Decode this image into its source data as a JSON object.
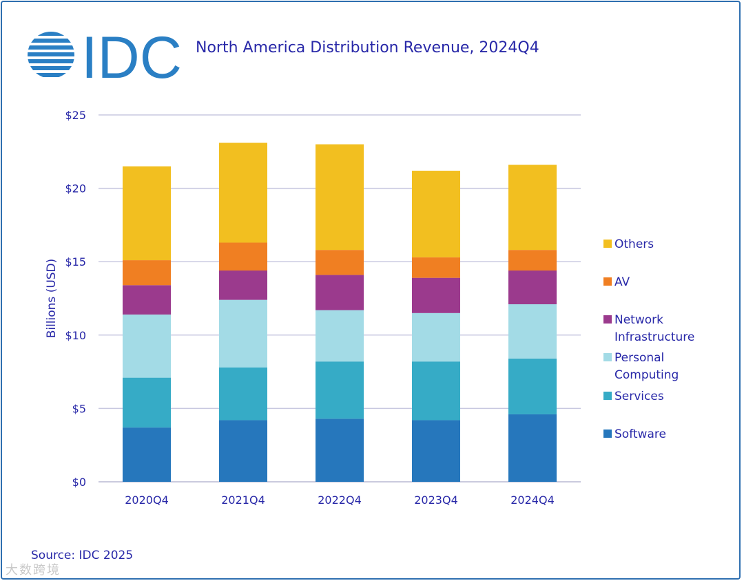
{
  "header": {
    "logo_text": "IDC",
    "title": "North America Distribution Revenue, 2024Q4"
  },
  "footer": {
    "source": "Source: IDC 2025",
    "watermark": "大数跨境"
  },
  "colors": {
    "frame": "#2f6fb0",
    "brand": "#2a7fc4",
    "text": "#2828a8",
    "grid": "#c8c8e0"
  },
  "chart_data": {
    "type": "bar",
    "stacked": true,
    "categories": [
      "2020Q4",
      "2021Q4",
      "2022Q4",
      "2023Q4",
      "2024Q4"
    ],
    "series": [
      {
        "name": "Software",
        "color": "#2677bc",
        "values": [
          3.7,
          4.2,
          4.3,
          4.2,
          4.6
        ]
      },
      {
        "name": "Services",
        "color": "#36abc6",
        "values": [
          3.4,
          3.6,
          3.9,
          4.0,
          3.8
        ]
      },
      {
        "name": "Personal Computing",
        "color": "#a3dbe6",
        "values": [
          4.3,
          4.6,
          3.5,
          3.3,
          3.7
        ]
      },
      {
        "name": "Network Infrastructure",
        "color": "#9b3a8d",
        "values": [
          2.0,
          2.0,
          2.4,
          2.4,
          2.3
        ]
      },
      {
        "name": "AV",
        "color": "#f07f22",
        "values": [
          1.7,
          1.9,
          1.7,
          1.4,
          1.4
        ]
      },
      {
        "name": "Others",
        "color": "#f2bf20",
        "values": [
          6.4,
          6.8,
          7.2,
          5.9,
          5.8
        ]
      }
    ],
    "legend_order": [
      {
        "label_lines": [
          "Others"
        ],
        "series": "Others"
      },
      {
        "label_lines": [
          "AV"
        ],
        "series": "AV"
      },
      {
        "label_lines": [
          "Network",
          "Infrastructure"
        ],
        "series": "Network Infrastructure"
      },
      {
        "label_lines": [
          "Personal",
          "Computing"
        ],
        "series": "Personal Computing"
      },
      {
        "label_lines": [
          "Services"
        ],
        "series": "Services"
      },
      {
        "label_lines": [
          "Software"
        ],
        "series": "Software"
      }
    ],
    "ylabel": "Billions (USD)",
    "xlabel": "",
    "ylim": [
      0,
      25
    ],
    "yticks": [
      0,
      5,
      10,
      15,
      20,
      25
    ],
    "ytick_labels": [
      "$0",
      "$5",
      "$10",
      "$15",
      "$20",
      "$25"
    ],
    "grid": true,
    "legend_position": "right"
  }
}
